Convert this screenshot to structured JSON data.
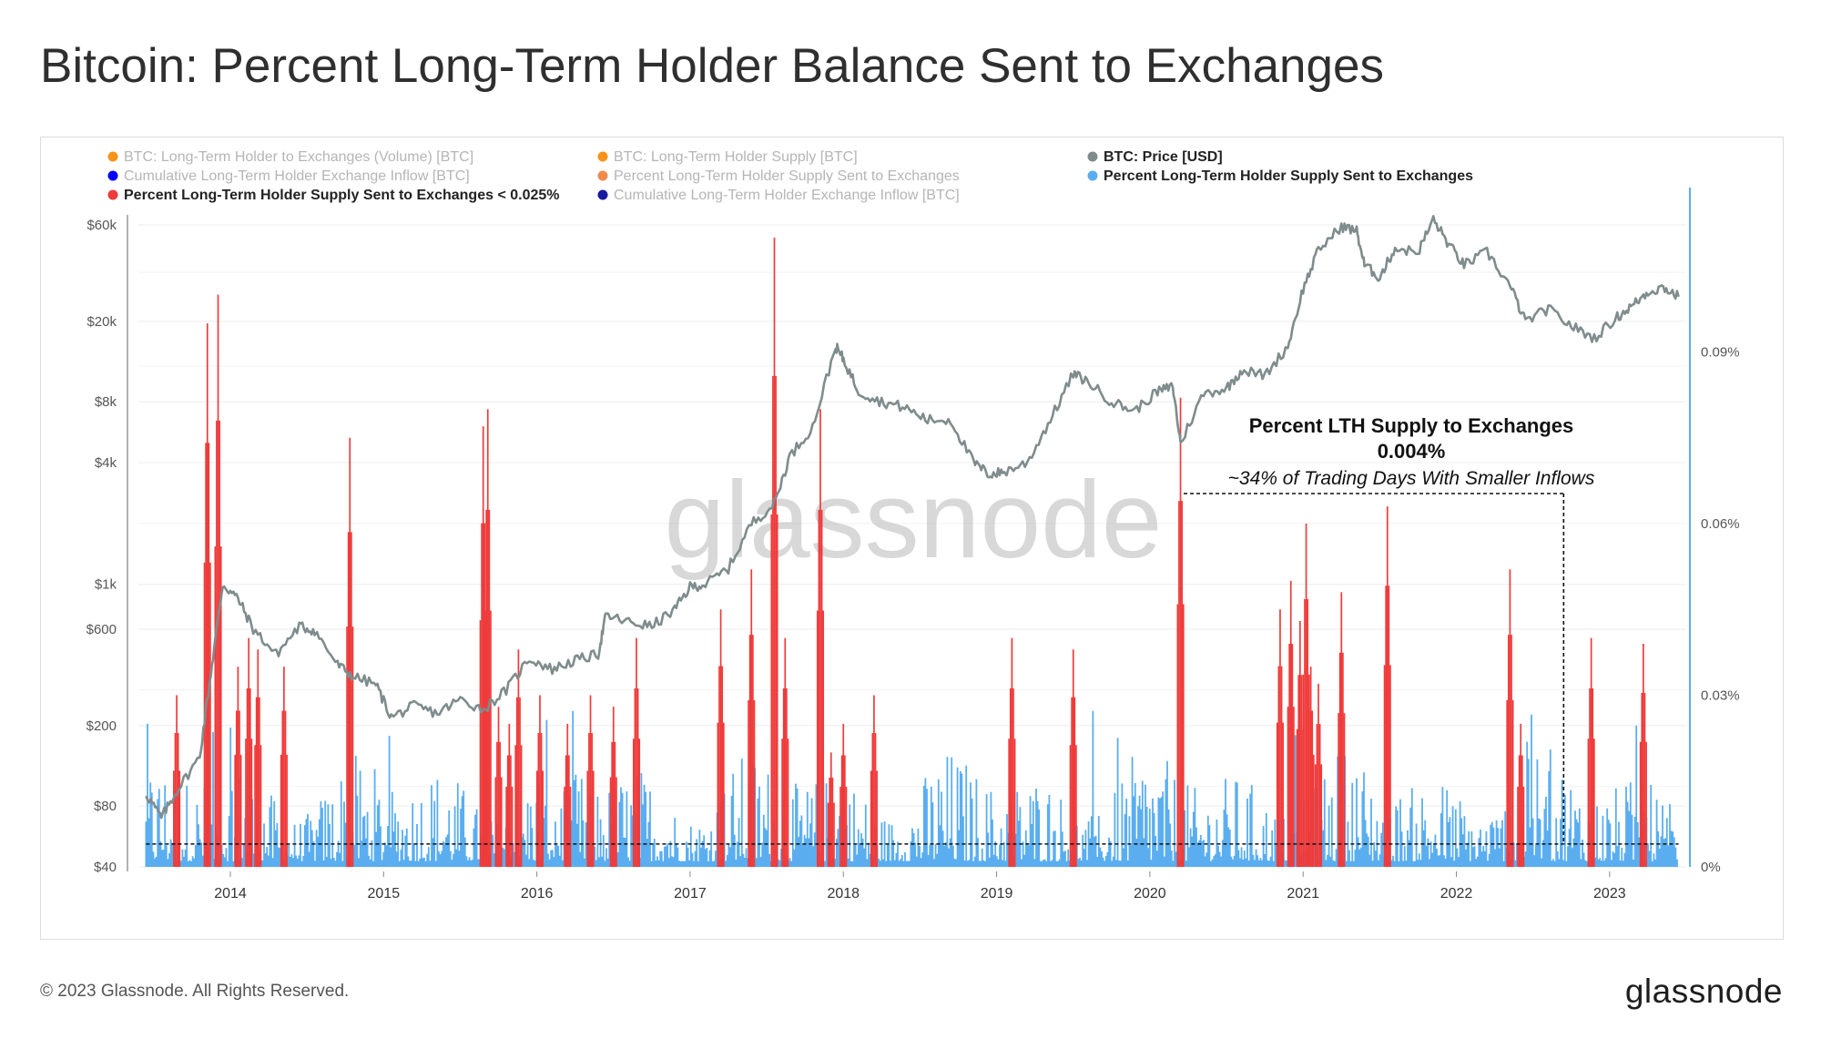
{
  "title": "Bitcoin: Percent Long-Term Holder Balance Sent to Exchanges",
  "footer": "© 2023 Glassnode. All Rights Reserved.",
  "brand": "glassnode",
  "watermark": "glassnode",
  "legend": [
    {
      "label": "BTC: Long-Term Holder to Exchanges (Volume) [BTC]",
      "color": "#f7931a",
      "active": false
    },
    {
      "label": "BTC: Long-Term Holder Supply [BTC]",
      "color": "#f7931a",
      "active": false
    },
    {
      "label": "BTC: Price [USD]",
      "color": "#7f8c8d",
      "active": true
    },
    {
      "label": "Cumulative Long-Term Holder Exchange Inflow [BTC]",
      "color": "#0000ff",
      "active": false
    },
    {
      "label": "Percent Long-Term Holder Supply Sent to Exchanges",
      "color": "#f08a4b",
      "active": false
    },
    {
      "label": "Percent Long-Term Holder Supply Sent to Exchanges",
      "color": "#5aaef0",
      "active": true
    },
    {
      "label": "Percent Long-Term Holder Supply Sent to Exchanges < 0.025%",
      "color": "#ef3b3b",
      "active": true
    },
    {
      "label": "Cumulative Long-Term Holder Exchange Inflow [BTC]",
      "color": "#1a1aa0",
      "active": false
    }
  ],
  "annotation": {
    "line1": "Percent LTH Supply to Exchanges",
    "line2": "0.004%",
    "line3": "~34% of Trading Days With Smaller Inflows"
  },
  "colors": {
    "price": "#7f8c8d",
    "bars": "#5aaef0",
    "spikes": "#ef3b3b",
    "right_axis": "#5aaef0"
  },
  "chart_data": {
    "type": "line",
    "x_ticks": [
      "2014",
      "2015",
      "2016",
      "2017",
      "2018",
      "2019",
      "2020",
      "2021",
      "2022",
      "2023"
    ],
    "left_axis": {
      "label": "",
      "scale": "log",
      "ticks": [
        "$40",
        "$80",
        "$200",
        "$600",
        "$1k",
        "$4k",
        "$8k",
        "$20k",
        "$60k"
      ],
      "tick_values": [
        40,
        80,
        200,
        600,
        1000,
        4000,
        8000,
        20000,
        60000
      ]
    },
    "right_axis": {
      "label": "",
      "ticks": [
        "0%",
        "0.03%",
        "0.06%",
        "0.09%"
      ],
      "tick_values": [
        0,
        0.03,
        0.06,
        0.09
      ],
      "max": 0.12
    },
    "threshold_pct": 0.004,
    "threshold_until_year": 2022.7,
    "series": [
      {
        "name": "BTC: Price [USD]",
        "axis": "left",
        "points": [
          [
            2013.45,
            92
          ],
          [
            2013.55,
            70
          ],
          [
            2013.65,
            95
          ],
          [
            2013.8,
            140
          ],
          [
            2013.88,
            400
          ],
          [
            2013.95,
            1000
          ],
          [
            2014.05,
            850
          ],
          [
            2014.15,
            600
          ],
          [
            2014.3,
            450
          ],
          [
            2014.45,
            620
          ],
          [
            2014.55,
            590
          ],
          [
            2014.7,
            400
          ],
          [
            2014.8,
            350
          ],
          [
            2014.95,
            320
          ],
          [
            2015.05,
            220
          ],
          [
            2015.2,
            250
          ],
          [
            2015.35,
            230
          ],
          [
            2015.5,
            270
          ],
          [
            2015.65,
            240
          ],
          [
            2015.8,
            300
          ],
          [
            2015.95,
            430
          ],
          [
            2016.1,
            380
          ],
          [
            2016.25,
            420
          ],
          [
            2016.4,
            450
          ],
          [
            2016.45,
            700
          ],
          [
            2016.6,
            650
          ],
          [
            2016.75,
            620
          ],
          [
            2016.9,
            750
          ],
          [
            2017.0,
            970
          ],
          [
            2017.1,
            1000
          ],
          [
            2017.25,
            1200
          ],
          [
            2017.4,
            2000
          ],
          [
            2017.55,
            2500
          ],
          [
            2017.65,
            4300
          ],
          [
            2017.8,
            6000
          ],
          [
            2017.95,
            15000
          ],
          [
            2018.0,
            13000
          ],
          [
            2018.1,
            9000
          ],
          [
            2018.25,
            8000
          ],
          [
            2018.4,
            7500
          ],
          [
            2018.55,
            6500
          ],
          [
            2018.7,
            6500
          ],
          [
            2018.85,
            4000
          ],
          [
            2018.95,
            3500
          ],
          [
            2019.05,
            3600
          ],
          [
            2019.2,
            4000
          ],
          [
            2019.35,
            6500
          ],
          [
            2019.5,
            11000
          ],
          [
            2019.6,
            10000
          ],
          [
            2019.75,
            8000
          ],
          [
            2019.9,
            7200
          ],
          [
            2020.05,
            9000
          ],
          [
            2020.15,
            9500
          ],
          [
            2020.2,
            5000
          ],
          [
            2020.35,
            8800
          ],
          [
            2020.5,
            9300
          ],
          [
            2020.6,
            11500
          ],
          [
            2020.75,
            10800
          ],
          [
            2020.9,
            15000
          ],
          [
            2021.0,
            29000
          ],
          [
            2021.1,
            45000
          ],
          [
            2021.25,
            59000
          ],
          [
            2021.35,
            56000
          ],
          [
            2021.4,
            38000
          ],
          [
            2021.5,
            33000
          ],
          [
            2021.6,
            46000
          ],
          [
            2021.75,
            44000
          ],
          [
            2021.85,
            64000
          ],
          [
            2021.95,
            48000
          ],
          [
            2022.05,
            38000
          ],
          [
            2022.2,
            44000
          ],
          [
            2022.35,
            30000
          ],
          [
            2022.45,
            20000
          ],
          [
            2022.6,
            23000
          ],
          [
            2022.75,
            19000
          ],
          [
            2022.9,
            16500
          ],
          [
            2023.05,
            21000
          ],
          [
            2023.15,
            24000
          ],
          [
            2023.25,
            28000
          ],
          [
            2023.35,
            29500
          ],
          [
            2023.45,
            26500
          ]
        ]
      },
      {
        "name": "Percent Long-Term Holder Supply Sent to Exchanges < 0.025%",
        "axis": "right",
        "spikes": [
          [
            2013.65,
            0.03
          ],
          [
            2013.85,
            0.095
          ],
          [
            2013.92,
            0.1
          ],
          [
            2014.05,
            0.035
          ],
          [
            2014.12,
            0.04
          ],
          [
            2014.18,
            0.038
          ],
          [
            2014.35,
            0.035
          ],
          [
            2014.78,
            0.075
          ],
          [
            2015.65,
            0.077
          ],
          [
            2015.68,
            0.08
          ],
          [
            2015.75,
            0.028
          ],
          [
            2015.82,
            0.025
          ],
          [
            2015.88,
            0.038
          ],
          [
            2016.02,
            0.03
          ],
          [
            2016.2,
            0.025
          ],
          [
            2016.35,
            0.03
          ],
          [
            2016.5,
            0.028
          ],
          [
            2016.65,
            0.04
          ],
          [
            2017.2,
            0.045
          ],
          [
            2017.4,
            0.052
          ],
          [
            2017.55,
            0.11
          ],
          [
            2017.62,
            0.04
          ],
          [
            2017.85,
            0.08
          ],
          [
            2017.92,
            0.02
          ],
          [
            2018.0,
            0.025
          ],
          [
            2018.2,
            0.03
          ],
          [
            2019.1,
            0.04
          ],
          [
            2019.5,
            0.038
          ],
          [
            2020.2,
            0.082
          ],
          [
            2020.85,
            0.045
          ],
          [
            2020.92,
            0.05
          ],
          [
            2020.98,
            0.043
          ],
          [
            2021.02,
            0.06
          ],
          [
            2021.05,
            0.035
          ],
          [
            2021.1,
            0.032
          ],
          [
            2021.25,
            0.048
          ],
          [
            2021.55,
            0.063
          ],
          [
            2022.35,
            0.052
          ],
          [
            2022.42,
            0.025
          ],
          [
            2022.88,
            0.04
          ],
          [
            2023.22,
            0.039
          ]
        ]
      },
      {
        "name": "Percent Long-Term Holder Supply Sent to Exchanges",
        "axis": "right",
        "typical_range": [
          0.001,
          0.022
        ]
      }
    ]
  }
}
